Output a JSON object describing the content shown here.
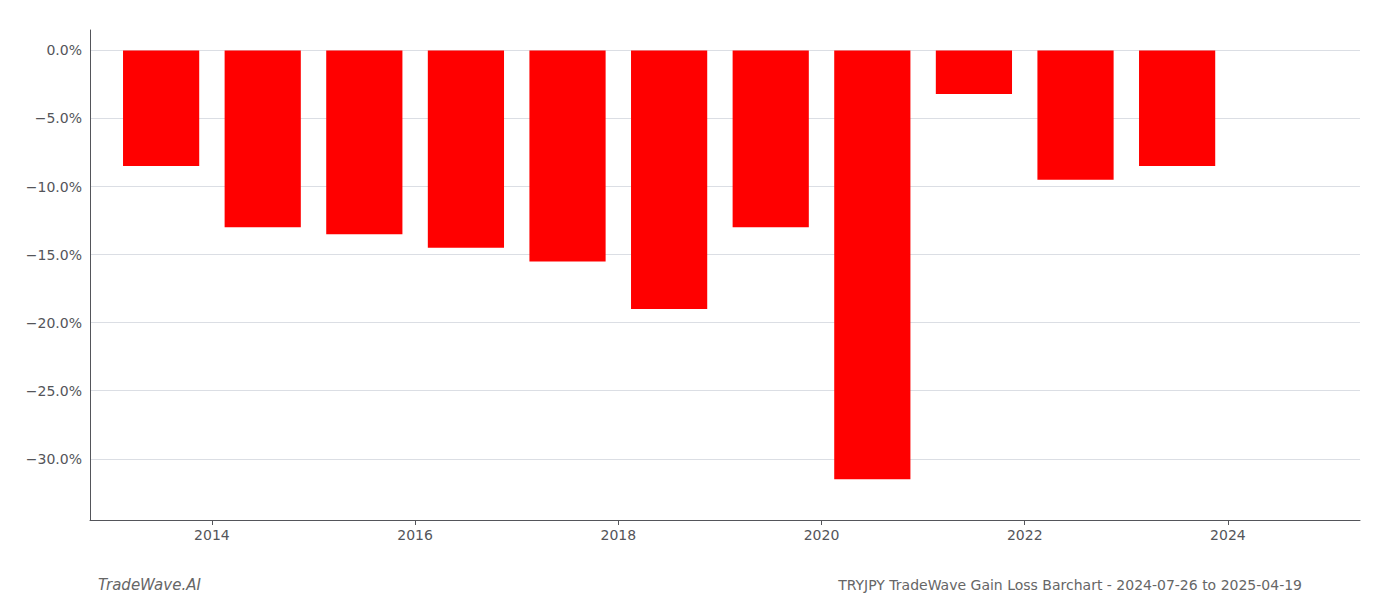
{
  "chart_data": {
    "type": "bar",
    "x": [
      2013.5,
      2014.5,
      2015.5,
      2016.5,
      2017.5,
      2018.5,
      2019.5,
      2020.5,
      2021.5,
      2022.5,
      2023.5
    ],
    "values": [
      -8.5,
      -13.0,
      -13.5,
      -14.5,
      -15.5,
      -19.0,
      -13.0,
      -31.5,
      -3.2,
      -9.5,
      -8.5
    ],
    "color": "#ff0000",
    "xlim": [
      2012.8,
      2025.3
    ],
    "xticks": [
      2014,
      2016,
      2018,
      2020,
      2022,
      2024
    ],
    "ylim": [
      -34.5,
      1.5
    ],
    "yticks": [
      {
        "value": 0.0,
        "label": "0.0%"
      },
      {
        "value": -5.0,
        "label": "−5.0%"
      },
      {
        "value": -10.0,
        "label": "−10.0%"
      },
      {
        "value": -15.0,
        "label": "−15.0%"
      },
      {
        "value": -20.0,
        "label": "−20.0%"
      },
      {
        "value": -25.0,
        "label": "−25.0%"
      },
      {
        "value": -30.0,
        "label": "−30.0%"
      }
    ],
    "grid": true,
    "annotations": [
      "TradeWave.AI",
      "TRYJPY TradeWave Gain Loss Barchart - 2024-07-26 to 2025-04-19"
    ]
  }
}
